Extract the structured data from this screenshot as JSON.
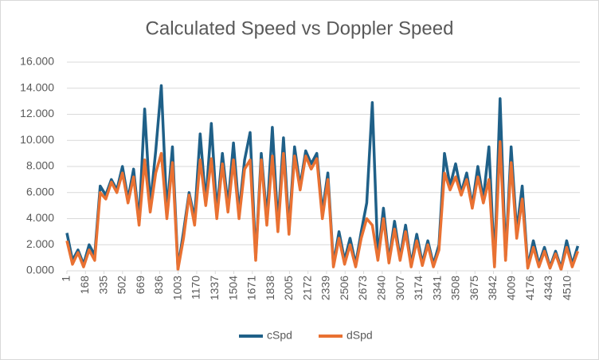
{
  "chart_data": {
    "type": "line",
    "title": "Calculated Speed vs Doppler Speed",
    "x": [
      1,
      51,
      101,
      151,
      201,
      251,
      301,
      351,
      401,
      451,
      501,
      551,
      601,
      651,
      701,
      751,
      801,
      851,
      901,
      951,
      1001,
      1051,
      1101,
      1151,
      1201,
      1251,
      1301,
      1351,
      1401,
      1451,
      1501,
      1551,
      1601,
      1651,
      1701,
      1751,
      1801,
      1851,
      1901,
      1951,
      2001,
      2051,
      2101,
      2151,
      2201,
      2251,
      2301,
      2351,
      2401,
      2451,
      2501,
      2551,
      2601,
      2651,
      2701,
      2751,
      2801,
      2851,
      2901,
      2951,
      3001,
      3051,
      3101,
      3151,
      3201,
      3251,
      3301,
      3351,
      3401,
      3451,
      3501,
      3551,
      3601,
      3651,
      3701,
      3751,
      3801,
      3851,
      3901,
      3951,
      4001,
      4051,
      4101,
      4151,
      4201,
      4251,
      4301,
      4351,
      4401,
      4451,
      4501,
      4551,
      4601
    ],
    "series": [
      {
        "name": "cSpd",
        "color": "#1f6088",
        "values": [
          2.9,
          0.8,
          1.6,
          0.5,
          2.0,
          1.2,
          6.5,
          5.8,
          7.0,
          6.2,
          8.0,
          5.5,
          7.8,
          3.8,
          12.4,
          5.0,
          9.2,
          14.2,
          4.5,
          9.5,
          0.2,
          3.0,
          6.0,
          4.0,
          10.5,
          5.2,
          11.3,
          4.5,
          9.0,
          5.0,
          9.8,
          4.5,
          8.5,
          10.6,
          1.0,
          9.0,
          4.0,
          11.0,
          3.5,
          10.2,
          3.2,
          9.5,
          6.5,
          9.2,
          8.2,
          9.0,
          4.5,
          7.5,
          0.5,
          3.0,
          0.8,
          2.5,
          0.5,
          3.0,
          5.2,
          12.9,
          1.0,
          4.8,
          0.8,
          3.8,
          1.0,
          3.5,
          0.5,
          2.8,
          0.6,
          2.3,
          0.5,
          2.0,
          9.0,
          6.5,
          8.2,
          6.0,
          7.5,
          5.0,
          8.0,
          5.5,
          9.5,
          0.5,
          13.2,
          1.0,
          9.5,
          3.0,
          6.5,
          0.3,
          2.3,
          0.5,
          1.8,
          0.3,
          1.5,
          0.2,
          2.3,
          0.5,
          1.9
        ]
      },
      {
        "name": "dSpd",
        "color": "#e97132",
        "values": [
          2.3,
          0.5,
          1.4,
          0.3,
          1.6,
          0.8,
          6.0,
          5.5,
          6.8,
          6.0,
          7.5,
          5.2,
          7.2,
          3.5,
          8.5,
          4.5,
          7.5,
          9.0,
          4.0,
          8.3,
          0.1,
          2.5,
          5.8,
          3.5,
          8.5,
          5.0,
          8.6,
          4.0,
          8.2,
          4.5,
          8.5,
          4.0,
          7.8,
          8.5,
          0.8,
          8.5,
          3.5,
          8.8,
          3.0,
          9.0,
          2.8,
          8.8,
          6.2,
          8.8,
          7.8,
          8.6,
          4.0,
          7.0,
          0.3,
          2.5,
          0.5,
          2.0,
          0.3,
          2.5,
          4.0,
          3.5,
          0.8,
          4.0,
          0.6,
          3.2,
          0.8,
          3.0,
          0.3,
          2.3,
          0.4,
          2.0,
          0.3,
          1.6,
          7.5,
          6.2,
          7.2,
          5.8,
          7.0,
          4.8,
          7.2,
          5.2,
          7.0,
          0.3,
          9.9,
          0.8,
          8.3,
          2.5,
          5.5,
          0.2,
          1.8,
          0.3,
          1.5,
          0.2,
          1.3,
          0.1,
          1.8,
          0.3,
          1.5
        ]
      }
    ],
    "xlim": [
      1,
      4620
    ],
    "xticks": [
      1,
      168,
      335,
      502,
      669,
      836,
      1003,
      1170,
      1337,
      1504,
      1671,
      1838,
      2005,
      2172,
      2339,
      2506,
      2673,
      2840,
      3007,
      3174,
      3341,
      3508,
      3675,
      3842,
      4009,
      4176,
      4343,
      4510
    ],
    "ylim": [
      0,
      16
    ],
    "yticks": [
      {
        "value": 0,
        "label": "0.000"
      },
      {
        "value": 2,
        "label": "2.000"
      },
      {
        "value": 4,
        "label": "4.000"
      },
      {
        "value": 6,
        "label": "6.000"
      },
      {
        "value": 8,
        "label": "8.000"
      },
      {
        "value": 10,
        "label": "10.000"
      },
      {
        "value": 12,
        "label": "12.000"
      },
      {
        "value": 14,
        "label": "14.000"
      },
      {
        "value": 16,
        "label": "16.000"
      }
    ],
    "grid": true,
    "legend": "bottom"
  }
}
